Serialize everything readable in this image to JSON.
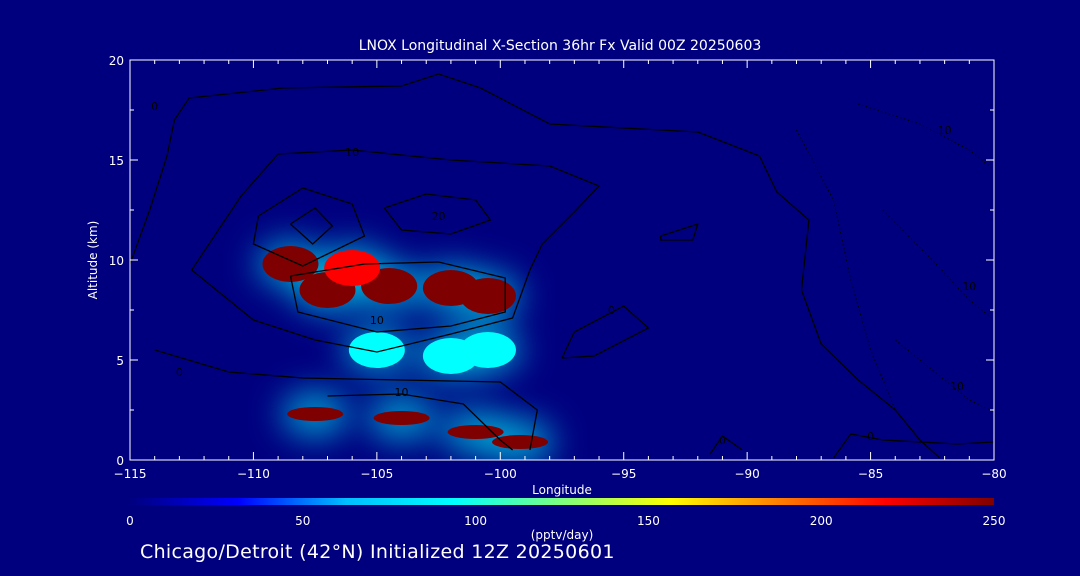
{
  "chart_data": {
    "type": "heatmap",
    "title": "LNOX Longitudinal X-Section 36hr  Fx Valid 00Z 20250603",
    "xlabel": "Longitude",
    "ylabel": "Altitude (km)",
    "xlim": [
      -115,
      -80
    ],
    "ylim": [
      0,
      20
    ],
    "x_ticks": [
      -115,
      -110,
      -105,
      -100,
      -95,
      -90,
      -85,
      -80
    ],
    "x_tick_labels": [
      "−115",
      "−110",
      "−105",
      "−100",
      "−95",
      "−90",
      "−85",
      "−80"
    ],
    "y_ticks": [
      0,
      5,
      10,
      15,
      20
    ],
    "y_tick_labels": [
      "0",
      "5",
      "10",
      "15",
      "20"
    ],
    "colorbar": {
      "label": "(pptv/day)",
      "range": [
        0,
        250
      ],
      "ticks": [
        0,
        50,
        100,
        150,
        200,
        250
      ],
      "tick_labels": [
        "0",
        "50",
        "100",
        "150",
        "200",
        "250"
      ],
      "colors": [
        "#00007f",
        "#0000ff",
        "#00bfff",
        "#00ffff",
        "#7fff7f",
        "#ffff00",
        "#ff7f00",
        "#ff0000",
        "#7f0000"
      ]
    },
    "field_blobs": [
      {
        "lon": -107.0,
        "alt": 8.5,
        "value": 250
      },
      {
        "lon": -104.5,
        "alt": 8.7,
        "value": 250
      },
      {
        "lon": -102.0,
        "alt": 8.6,
        "value": 250
      },
      {
        "lon": -100.5,
        "alt": 8.2,
        "value": 250
      },
      {
        "lon": -108.5,
        "alt": 9.8,
        "value": 240
      },
      {
        "lon": -106.0,
        "alt": 9.6,
        "value": 230
      },
      {
        "lon": -105.0,
        "alt": 5.5,
        "value": 80
      },
      {
        "lon": -102.0,
        "alt": 5.2,
        "value": 90
      },
      {
        "lon": -100.5,
        "alt": 5.5,
        "value": 80
      },
      {
        "lon": -107.5,
        "alt": 2.3,
        "value": 250
      },
      {
        "lon": -104.0,
        "alt": 2.1,
        "value": 250
      },
      {
        "lon": -101.0,
        "alt": 1.4,
        "value": 250
      },
      {
        "lon": -99.2,
        "alt": 0.9,
        "value": 250
      }
    ],
    "contours": [
      {
        "label": "0",
        "label_lon": -114.0,
        "label_alt": 17.5,
        "points": [
          [
            -115,
            9.8
          ],
          [
            -114.2,
            12.5
          ],
          [
            -113.5,
            15.2
          ],
          [
            -113.2,
            17.0
          ],
          [
            -112.6,
            18.1
          ],
          [
            -108.8,
            18.6
          ],
          [
            -104.0,
            18.7
          ],
          [
            -102.5,
            19.3
          ],
          [
            -100.8,
            18.6
          ],
          [
            -98.0,
            16.8
          ],
          [
            -92.0,
            16.4
          ],
          [
            -89.5,
            15.2
          ],
          [
            -88.8,
            13.4
          ],
          [
            -87.5,
            12.0
          ],
          [
            -87.8,
            8.5
          ],
          [
            -87.0,
            5.8
          ],
          [
            -85.5,
            4.0
          ],
          [
            -84.0,
            2.5
          ],
          [
            -83.0,
            1.0
          ],
          [
            -82.2,
            0.1
          ]
        ]
      },
      {
        "label": "0",
        "label_lon": -85.0,
        "label_alt": 1.0,
        "points": [
          [
            -86.5,
            0.1
          ],
          [
            -85.8,
            1.3
          ],
          [
            -84.5,
            1.0
          ],
          [
            -81.5,
            0.8
          ],
          [
            -80.0,
            0.9
          ]
        ]
      },
      {
        "label": "0",
        "label_lon": -91.0,
        "label_alt": 0.8,
        "points": [
          [
            -91.5,
            0.3
          ],
          [
            -91.0,
            1.2
          ],
          [
            -90.2,
            0.5
          ]
        ]
      },
      {
        "label": "0",
        "label_lon": -95.5,
        "label_alt": 7.3,
        "points": [
          [
            -97.5,
            5.1
          ],
          [
            -97.0,
            6.4
          ],
          [
            -95.0,
            7.7
          ],
          [
            -94.0,
            6.6
          ],
          [
            -96.2,
            5.2
          ],
          [
            -97.5,
            5.1
          ]
        ]
      },
      {
        "label": "0",
        "label_lon": -113.0,
        "label_alt": 4.2,
        "points": [
          [
            -114.0,
            5.5
          ],
          [
            -111.0,
            4.4
          ],
          [
            -108.0,
            4.1
          ],
          [
            -104.0,
            4.0
          ],
          [
            -100.0,
            3.9
          ],
          [
            -98.5,
            2.5
          ],
          [
            -98.8,
            0.5
          ]
        ]
      },
      {
        "label": "",
        "label_lon": -93.0,
        "label_alt": 11.5,
        "points": [
          [
            -93.5,
            11.2
          ],
          [
            -92.0,
            11.8
          ],
          [
            -92.2,
            11.0
          ],
          [
            -93.5,
            11.0
          ],
          [
            -93.5,
            11.2
          ]
        ]
      },
      {
        "label": "10",
        "label_lon": -106.0,
        "label_alt": 15.2,
        "points": [
          [
            -110.5,
            13.2
          ],
          [
            -109.0,
            15.3
          ],
          [
            -106.0,
            15.5
          ],
          [
            -102.0,
            15.0
          ],
          [
            -98.0,
            14.7
          ],
          [
            -96.0,
            13.7
          ],
          [
            -97.0,
            12.4
          ],
          [
            -98.3,
            10.8
          ],
          [
            -98.8,
            9.5
          ],
          [
            -99.5,
            7.1
          ],
          [
            -102.0,
            6.3
          ],
          [
            -105.0,
            5.4
          ],
          [
            -107.5,
            6.0
          ],
          [
            -110.0,
            7.0
          ],
          [
            -112.5,
            9.5
          ],
          [
            -110.5,
            13.2
          ]
        ]
      },
      {
        "label": "10",
        "label_lon": -104.0,
        "label_alt": 3.2,
        "points": [
          [
            -107.0,
            3.2
          ],
          [
            -104.0,
            3.3
          ],
          [
            -101.5,
            2.8
          ],
          [
            -100.0,
            1.0
          ],
          [
            -99.5,
            0.5
          ]
        ]
      },
      {
        "label": "",
        "label_lon": -107.5,
        "label_alt": 11.8,
        "points": [
          [
            -109.8,
            12.2
          ],
          [
            -108.0,
            13.6
          ],
          [
            -106.0,
            12.8
          ],
          [
            -105.5,
            11.2
          ],
          [
            -108.0,
            9.7
          ],
          [
            -110.0,
            10.8
          ],
          [
            -109.8,
            12.2
          ]
        ]
      },
      {
        "label": "",
        "label_lon": -107.8,
        "label_alt": 11.5,
        "points": [
          [
            -108.5,
            11.8
          ],
          [
            -107.5,
            12.6
          ],
          [
            -106.8,
            11.7
          ],
          [
            -107.6,
            10.8
          ],
          [
            -108.5,
            11.8
          ]
        ]
      },
      {
        "label": "20",
        "label_lon": -102.5,
        "label_alt": 12.0,
        "points": [
          [
            -104.7,
            12.6
          ],
          [
            -103.0,
            13.3
          ],
          [
            -101.0,
            13.0
          ],
          [
            -100.4,
            12.0
          ],
          [
            -102.0,
            11.3
          ],
          [
            -104.0,
            11.5
          ],
          [
            -104.7,
            12.6
          ]
        ]
      },
      {
        "label": "10",
        "label_lon": -105.0,
        "label_alt": 6.8,
        "points": [
          [
            -108.5,
            9.2
          ],
          [
            -105.5,
            9.8
          ],
          [
            -102.5,
            9.9
          ],
          [
            -99.8,
            9.1
          ],
          [
            -99.8,
            7.4
          ],
          [
            -102.0,
            6.7
          ],
          [
            -105.0,
            6.4
          ],
          [
            -108.2,
            7.4
          ],
          [
            -108.5,
            9.2
          ]
        ]
      }
    ],
    "dotted_contours": [
      {
        "label": "10",
        "label_lon": -82.0,
        "label_alt": 16.3,
        "points": [
          [
            -85.5,
            17.8
          ],
          [
            -83.0,
            16.8
          ],
          [
            -81.0,
            15.5
          ],
          [
            -80.0,
            14.5
          ]
        ]
      },
      {
        "label": "10",
        "label_lon": -81.0,
        "label_alt": 8.5,
        "points": [
          [
            -84.5,
            12.5
          ],
          [
            -82.5,
            10.0
          ],
          [
            -81.0,
            8.0
          ],
          [
            -80.0,
            7.0
          ]
        ]
      },
      {
        "label": "10",
        "label_lon": -81.5,
        "label_alt": 3.5,
        "points": [
          [
            -84.0,
            6.0
          ],
          [
            -82.5,
            4.5
          ],
          [
            -81.0,
            3.0
          ],
          [
            -80.0,
            2.4
          ]
        ]
      },
      {
        "label": "",
        "label_lon": -86.0,
        "label_alt": 10.0,
        "points": [
          [
            -88.0,
            16.5
          ],
          [
            -86.5,
            13.0
          ],
          [
            -85.8,
            9.0
          ],
          [
            -85.0,
            5.5
          ],
          [
            -84.0,
            2.5
          ]
        ]
      }
    ]
  },
  "footer": {
    "text": "Chicago/Detroit (42°N) Initialized 12Z 20250601"
  }
}
